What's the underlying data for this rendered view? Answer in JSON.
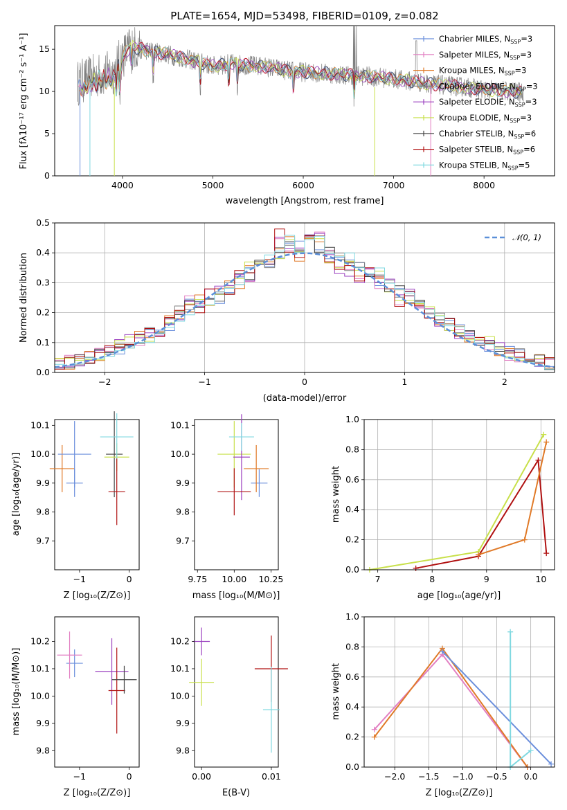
{
  "title": "PLATE=1654, MJD=53498, FIBERID=0109, z=0.082",
  "colors": {
    "chabrier_miles": "#6b8fdc",
    "salpeter_miles": "#e27fc2",
    "kroupa_miles": "#e07a28",
    "chabrier_elodie": "#7f7f7f",
    "salpeter_elodie": "#9a3fbf",
    "kroupa_elodie": "#c8e04a",
    "chabrier_stelib": "#444444",
    "salpeter_stelib": "#b01010",
    "kroupa_stelib": "#7fd8e0",
    "gaussian": "#5b8fd8"
  },
  "panel1": {
    "xlabel": "wavelength [Angstrom, rest frame]",
    "ylabel": "Flux [fλ10⁻¹⁷ erg cm⁻² s⁻¹ A⁻¹]",
    "xticks": [
      "4000",
      "5000",
      "6000",
      "7000",
      "8000"
    ],
    "yticks": [
      "0",
      "5",
      "10",
      "15"
    ],
    "legend": [
      {
        "label": "Chabrier MILES, N",
        "sub": "SSP",
        "suffix": "=3",
        "color": "#6b8fdc"
      },
      {
        "label": "Salpeter MILES, N",
        "sub": "SSP",
        "suffix": "=3",
        "color": "#e27fc2"
      },
      {
        "label": "Kroupa MILES, N",
        "sub": "SSP",
        "suffix": "=3",
        "color": "#e07a28"
      },
      {
        "label": "Chabrier ELODIE, N",
        "sub": "SSP",
        "suffix": "=3",
        "color": "#7f7f7f"
      },
      {
        "label": "Salpeter ELODIE, N",
        "sub": "SSP",
        "suffix": "=3",
        "color": "#9a3fbf"
      },
      {
        "label": "Kroupa ELODIE, N",
        "sub": "SSP",
        "suffix": "=3",
        "color": "#c8e04a"
      },
      {
        "label": "Chabrier STELIB, N",
        "sub": "SSP",
        "suffix": "=6",
        "color": "#444444"
      },
      {
        "label": "Salpeter STELIB, N",
        "sub": "SSP",
        "suffix": "=6",
        "color": "#b01010"
      },
      {
        "label": "Kroupa STELIB, N",
        "sub": "SSP",
        "suffix": "=5",
        "color": "#7fd8e0"
      }
    ]
  },
  "panel2": {
    "xlabel": "(data-model)/error",
    "ylabel": "Normed distribution",
    "xticks": [
      "−2",
      "−1",
      "0",
      "1",
      "2"
    ],
    "yticks": [
      "0.0",
      "0.1",
      "0.2",
      "0.3",
      "0.4",
      "0.5"
    ],
    "legend_label": "𝒩(0, 1)"
  },
  "panel3": {
    "xlabel": "Z [log₁₀(Z/Z⊙)]",
    "ylabel": "age  [log₁₀(age/yr)]",
    "xticks": [
      "−1",
      "0"
    ],
    "yticks": [
      "9.7",
      "9.8",
      "9.9",
      "10.0",
      "10.1"
    ]
  },
  "panel4": {
    "xlabel": "mass [log₁₀(M/M⊙)]",
    "xticks": [
      "9.75",
      "10.00",
      "10.25"
    ],
    "yticks": [
      "9.7",
      "9.8",
      "9.9",
      "10.0",
      "10.1"
    ]
  },
  "panel5": {
    "xlabel": "age  [log₁₀(age/yr)]",
    "ylabel": "mass weight",
    "xticks": [
      "7",
      "8",
      "9",
      "10"
    ],
    "yticks": [
      "0.0",
      "0.2",
      "0.4",
      "0.6",
      "0.8",
      "1.0"
    ]
  },
  "panel6": {
    "xlabel": "Z [log₁₀(Z/Z⊙)]",
    "ylabel": "mass [log₁₀(M/M⊙)]",
    "xticks": [
      "−1",
      "0"
    ],
    "yticks": [
      "9.8",
      "9.9",
      "10.0",
      "10.1",
      "10.2"
    ]
  },
  "panel7": {
    "xlabel": "E(B-V)",
    "xticks": [
      "0.00",
      "0.01"
    ],
    "yticks": [
      "9.8",
      "9.9",
      "10.0",
      "10.1",
      "10.2"
    ]
  },
  "panel8": {
    "xlabel": "Z [log₁₀(Z/Z⊙)]",
    "ylabel": "mass weight",
    "xticks": [
      "−2.0",
      "−1.5",
      "−1.0",
      "−0.5",
      "0.0"
    ],
    "yticks": [
      "0.0",
      "0.2",
      "0.4",
      "0.6",
      "0.8",
      "1.0"
    ]
  },
  "chart_data": [
    {
      "type": "line",
      "panel": "spectrum",
      "xlim": [
        3250,
        8780
      ],
      "ylim": [
        0,
        17.8
      ],
      "grid": false,
      "legend_position": "top-right",
      "continuum_x": [
        3500,
        3700,
        3900,
        4000,
        4100,
        4300,
        4500,
        4800,
        5000,
        5200,
        5400,
        5600,
        5800,
        6000,
        6200,
        6400,
        6600,
        6800,
        7000,
        7200,
        7400,
        7600,
        7800,
        8000,
        8200,
        8400
      ],
      "continuum_y": [
        11.0,
        11.8,
        12.3,
        14.2,
        15.3,
        14.8,
        14.4,
        13.6,
        13.0,
        13.3,
        13.1,
        12.9,
        12.5,
        12.3,
        12.2,
        12.0,
        11.9,
        11.7,
        11.5,
        11.2,
        10.9,
        10.7,
        10.5,
        10.2,
        10.1,
        9.9
      ]
    },
    {
      "type": "line",
      "panel": "residual_histogram",
      "xlim": [
        -2.5,
        2.5
      ],
      "ylim": [
        0,
        0.5
      ],
      "grid": true,
      "legend_position": "top-right",
      "bin_edges": [
        -2.5,
        -2.4,
        -2.3,
        -2.2,
        -2.1,
        -2.0,
        -1.9,
        -1.8,
        -1.7,
        -1.6,
        -1.5,
        -1.4,
        -1.3,
        -1.2,
        -1.1,
        -1.0,
        -0.9,
        -0.8,
        -0.7,
        -0.6,
        -0.5,
        -0.4,
        -0.3,
        -0.2,
        -0.1,
        0.0,
        0.1,
        0.2,
        0.3,
        0.4,
        0.5,
        0.6,
        0.7,
        0.8,
        0.9,
        1.0,
        1.1,
        1.2,
        1.3,
        1.4,
        1.5,
        1.6,
        1.7,
        1.8,
        1.9,
        2.0,
        2.1,
        2.2,
        2.3,
        2.4,
        2.5
      ],
      "series": [
        {
          "values": [
            0.03,
            0.03,
            0.04,
            0.05,
            0.06,
            0.08,
            0.08,
            0.09,
            0.11,
            0.13,
            0.15,
            0.16,
            0.21,
            0.23,
            0.22,
            0.25,
            0.25,
            0.28,
            0.31,
            0.33,
            0.36,
            0.37,
            0.4,
            0.43,
            0.42,
            0.44,
            0.42,
            0.4,
            0.39,
            0.36,
            0.35,
            0.33,
            0.31,
            0.29,
            0.27,
            0.25,
            0.23,
            0.2,
            0.18,
            0.17,
            0.14,
            0.12,
            0.11,
            0.09,
            0.08,
            0.07,
            0.06,
            0.05,
            0.04,
            0.03
          ]
        },
        {
          "values": [
            0.03,
            0.04,
            0.04,
            0.05,
            0.07,
            0.07,
            0.09,
            0.11,
            0.11,
            0.14,
            0.14,
            0.18,
            0.19,
            0.24,
            0.21,
            0.26,
            0.27,
            0.28,
            0.33,
            0.32,
            0.38,
            0.38,
            0.46,
            0.41,
            0.4,
            0.44,
            0.45,
            0.39,
            0.34,
            0.34,
            0.32,
            0.36,
            0.3,
            0.3,
            0.24,
            0.26,
            0.21,
            0.2,
            0.17,
            0.16,
            0.13,
            0.13,
            0.1,
            0.09,
            0.08,
            0.06,
            0.05,
            0.05,
            0.04,
            0.03
          ]
        },
        {
          "values": [
            0.03,
            0.03,
            0.04,
            0.06,
            0.06,
            0.07,
            0.09,
            0.1,
            0.12,
            0.12,
            0.15,
            0.17,
            0.19,
            0.21,
            0.24,
            0.24,
            0.28,
            0.29,
            0.3,
            0.35,
            0.36,
            0.39,
            0.4,
            0.45,
            0.39,
            0.43,
            0.44,
            0.38,
            0.37,
            0.38,
            0.33,
            0.31,
            0.33,
            0.28,
            0.26,
            0.25,
            0.22,
            0.2,
            0.18,
            0.15,
            0.15,
            0.12,
            0.1,
            0.1,
            0.07,
            0.06,
            0.06,
            0.05,
            0.04,
            0.03
          ]
        }
      ],
      "gaussian": {
        "mean": 0,
        "sigma": 1
      }
    },
    {
      "type": "scatter",
      "panel": "age_vs_metallicity",
      "xlim": [
        -1.5,
        0.2
      ],
      "ylim": [
        9.6,
        10.12
      ],
      "x": [
        -1.1,
        -1.35,
        -1.1,
        -0.3,
        -0.25,
        -0.25,
        -0.25
      ],
      "y": [
        9.9,
        9.95,
        10.0,
        10.0,
        9.99,
        10.06,
        9.87
      ]
    },
    {
      "type": "scatter",
      "panel": "age_vs_mass",
      "xlim": [
        9.73,
        10.3
      ],
      "ylim": [
        9.6,
        10.12
      ],
      "x": [
        10.17,
        10.15,
        10.0,
        10.05,
        10.05,
        10.0
      ],
      "y": [
        9.9,
        9.95,
        10.0,
        9.99,
        10.06,
        9.87
      ]
    },
    {
      "type": "line",
      "panel": "mass_weight_vs_age",
      "xlim": [
        6.75,
        10.25
      ],
      "ylim": [
        0,
        1.0
      ],
      "grid": true,
      "series": [
        {
          "x": [
            6.85,
            8.85,
            10.05
          ],
          "y": [
            0.0,
            0.12,
            0.9
          ]
        },
        {
          "x": [
            7.7,
            8.85,
            9.95,
            10.1
          ],
          "y": [
            0.01,
            0.09,
            0.73,
            0.11
          ]
        },
        {
          "x": [
            8.85,
            9.7,
            10.1
          ],
          "y": [
            0.1,
            0.2,
            0.85
          ]
        }
      ]
    },
    {
      "type": "scatter",
      "panel": "mass_vs_metallicity",
      "xlim": [
        -1.5,
        0.2
      ],
      "ylim": [
        9.74,
        10.29
      ],
      "x": [
        -1.1,
        -1.2,
        -0.35,
        -0.25,
        -0.1
      ],
      "y": [
        10.12,
        10.15,
        10.09,
        10.02,
        10.06
      ]
    },
    {
      "type": "scatter",
      "panel": "mass_vs_ebv",
      "xlim": [
        -0.001,
        0.011
      ],
      "ylim": [
        9.74,
        10.29
      ],
      "x": [
        0.0,
        0.0,
        0.01,
        0.01
      ],
      "y": [
        10.2,
        10.05,
        10.1,
        9.95
      ]
    },
    {
      "type": "line",
      "panel": "mass_weight_vs_metallicity",
      "xlim": [
        -2.45,
        0.35
      ],
      "ylim": [
        0,
        1.0
      ],
      "grid": true,
      "series": [
        {
          "x": [
            -2.3,
            -1.3,
            -0.05
          ],
          "y": [
            0.25,
            0.75,
            0.0
          ]
        },
        {
          "x": [
            -2.3,
            -1.3,
            -0.05
          ],
          "y": [
            0.2,
            0.79,
            0.0
          ]
        },
        {
          "x": [
            -1.3,
            0.3
          ],
          "y": [
            0.77,
            0.02
          ]
        },
        {
          "x": [
            -0.3,
            -0.3,
            0.0
          ],
          "y": [
            0.9,
            0.0,
            0.11
          ]
        }
      ]
    }
  ]
}
